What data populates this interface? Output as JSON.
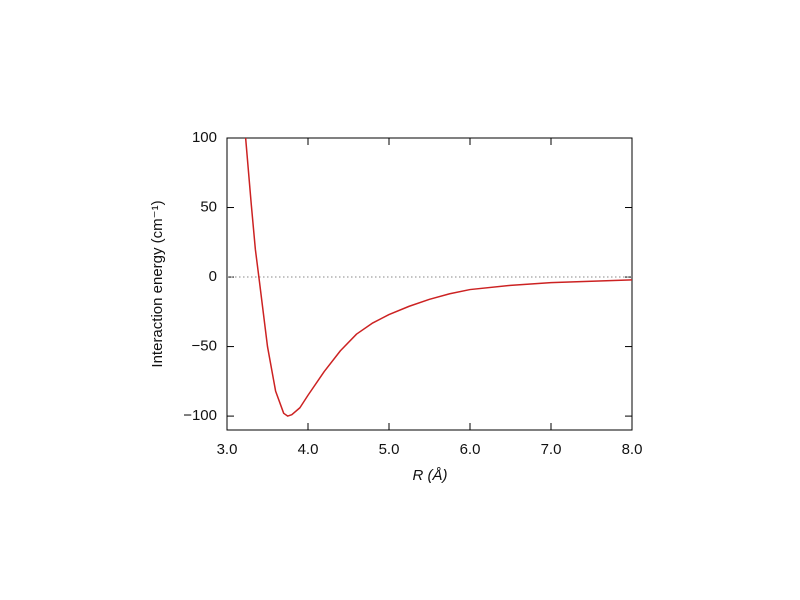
{
  "chart_data": {
    "type": "line",
    "xlabel": "R (Å)",
    "ylabel": "Interaction energy (cm⁻¹)",
    "x": [
      3.23,
      3.3,
      3.35,
      3.4,
      3.5,
      3.6,
      3.7,
      3.75,
      3.8,
      3.9,
      4.0,
      4.2,
      4.4,
      4.6,
      4.8,
      5.0,
      5.25,
      5.5,
      5.75,
      6.0,
      6.5,
      7.0,
      7.5,
      8.0
    ],
    "series": [
      {
        "color": "#cc2222",
        "values": [
          100,
          52,
          20,
          -3,
          -50,
          -82,
          -98,
          -100,
          -99,
          -94,
          -85,
          -68,
          -53,
          -41,
          -33,
          -27,
          -21,
          -16,
          -12,
          -9,
          -6,
          -4,
          -3,
          -2
        ]
      }
    ],
    "xlim": [
      3,
      8
    ],
    "xticks": [
      {
        "value": 3,
        "label": "3.0"
      },
      {
        "value": 4,
        "label": "4.0"
      },
      {
        "value": 5,
        "label": "5.0"
      },
      {
        "value": 6,
        "label": "6.0"
      },
      {
        "value": 7,
        "label": "7.0"
      },
      {
        "value": 8,
        "label": "8.0"
      }
    ],
    "ylim": [
      -110,
      100
    ],
    "yticks": [
      {
        "value": -100,
        "label": "−100"
      },
      {
        "value": -50,
        "label": "−50"
      },
      0,
      50,
      100
    ],
    "zero_line": true
  }
}
